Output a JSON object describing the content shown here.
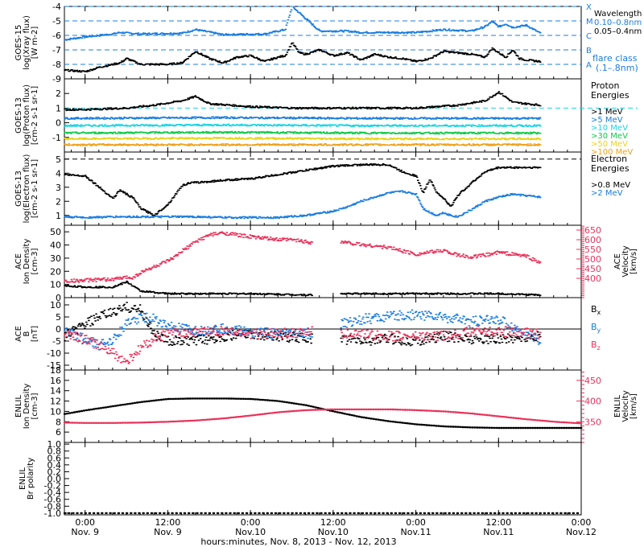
{
  "colors": {
    "black": "#000000",
    "blue": "#1a7de0",
    "pink": "#e8325a",
    "cyan": "#19d4e6",
    "green": "#12c94a",
    "ygreen": "#a8d81a",
    "yellow": "#e8d31a",
    "orange": "#f0a01a",
    "red": "#e8401a"
  },
  "footer": {
    "xlabel": "hours:minutes, Nov.  8, 2013 - Nov. 12, 2013",
    "ticks": [
      {
        "t": 0,
        "top": "0:00",
        "bottom": "Nov. 9"
      },
      {
        "t": 12,
        "top": "12:00",
        "bottom": "Nov. 9"
      },
      {
        "t": 24,
        "top": "0:00",
        "bottom": "Nov.10"
      },
      {
        "t": 36,
        "top": "12:00",
        "bottom": "Nov.10"
      },
      {
        "t": 48,
        "top": "0:00",
        "bottom": "Nov.11"
      },
      {
        "t": 60,
        "top": "12:00",
        "bottom": "Nov.11"
      },
      {
        "t": 72,
        "top": "0:00",
        "bottom": "Nov.12"
      }
    ]
  },
  "chart_data": [
    {
      "id": "goes-xray",
      "type": "line",
      "ylabel": [
        "GOES-15",
        "log(Xray flux)",
        "[W m-2]"
      ],
      "ylim": [
        -9,
        -4
      ],
      "yticks": [
        -9,
        -8,
        -7,
        -6,
        -5,
        -4
      ],
      "y_log10": true,
      "legend": [
        {
          "text": "Wavelength",
          "color": "black"
        },
        {
          "text": "0.10–0.8nm",
          "color": "blue"
        },
        {
          "text": "0.05–0.4nm",
          "color": "black"
        }
      ],
      "flare_class": {
        "levels": [
          {
            "label": "X",
            "y": -4
          },
          {
            "label": "M",
            "y": -5
          },
          {
            "label": "C",
            "y": -6
          },
          {
            "label": "B",
            "y": -7
          },
          {
            "label": "A",
            "y": -8
          }
        ],
        "label1": "flare class",
        "label2": "(.1–.8nm)"
      },
      "series": [
        {
          "name": "0.10–0.8nm",
          "color": "blue",
          "x": [
            -3,
            0,
            4,
            5,
            8,
            14,
            16,
            20,
            26,
            29,
            30,
            34,
            38,
            40,
            44,
            48,
            52,
            56,
            58,
            59,
            60,
            61,
            62,
            64,
            66
          ],
          "y": [
            -6.3,
            -6.1,
            -5.9,
            -5.8,
            -5.9,
            -5.85,
            -5.6,
            -5.95,
            -5.9,
            -5.6,
            -4.0,
            -5.7,
            -5.7,
            -5.8,
            -5.8,
            -5.8,
            -5.6,
            -5.7,
            -5.4,
            -5.05,
            -5.4,
            -5.2,
            -5.45,
            -5.3,
            -5.85
          ]
        },
        {
          "name": "0.05–0.4nm",
          "color": "black",
          "x": [
            -3,
            0,
            2,
            5,
            6,
            8,
            10,
            12,
            14,
            16,
            18,
            20,
            22,
            24,
            26,
            28,
            29,
            30,
            31,
            32,
            34,
            36,
            38,
            40,
            42,
            44,
            46,
            48,
            50,
            52,
            54,
            56,
            58,
            59,
            60,
            61,
            62,
            63,
            64,
            66
          ],
          "y": [
            -8.4,
            -8.5,
            -8.2,
            -7.9,
            -7.6,
            -8.0,
            -8.0,
            -8.0,
            -7.9,
            -7.1,
            -7.6,
            -7.9,
            -7.5,
            -7.4,
            -7.8,
            -7.5,
            -7.4,
            -6.5,
            -7.2,
            -7.3,
            -7.0,
            -7.4,
            -7.2,
            -7.7,
            -7.3,
            -7.5,
            -7.6,
            -7.8,
            -7.6,
            -7.1,
            -7.2,
            -7.3,
            -7.5,
            -6.9,
            -7.2,
            -7.5,
            -7.0,
            -7.6,
            -7.7,
            -7.8
          ]
        }
      ]
    },
    {
      "id": "goes-proton",
      "type": "line",
      "ylabel": [
        "GOES-13",
        "log(Proton flux)",
        "[cm-2 s-1 sr-1]"
      ],
      "ylim": [
        -2,
        3
      ],
      "yticks": [
        -1,
        0,
        1,
        2
      ],
      "y_log10": true,
      "legend_title": [
        "Proton",
        "Energies"
      ],
      "series": [
        {
          "name": ">1 MeV",
          "color": "black",
          "x": [
            -3,
            0,
            6,
            10,
            14,
            16,
            18,
            24,
            30,
            36,
            42,
            48,
            54,
            58,
            60,
            62,
            66
          ],
          "y": [
            0.9,
            0.9,
            1.0,
            1.2,
            1.5,
            1.8,
            1.3,
            1.1,
            1.0,
            1.0,
            1.0,
            1.0,
            1.2,
            1.5,
            2.1,
            1.4,
            1.2
          ]
        },
        {
          "name": ">5 MeV",
          "color": "blue",
          "x": [
            -3,
            20,
            40,
            66
          ],
          "y": [
            0.3,
            0.35,
            0.3,
            0.3
          ]
        },
        {
          "name": ">10 MeV",
          "color": "cyan",
          "x": [
            -3,
            20,
            40,
            66
          ],
          "y": [
            -0.2,
            -0.15,
            -0.2,
            -0.2
          ]
        },
        {
          "name": ">30 MeV",
          "color": "green",
          "x": [
            -3,
            20,
            40,
            66
          ],
          "y": [
            -0.7,
            -0.65,
            -0.7,
            -0.7
          ]
        },
        {
          "name": ">50 MeV",
          "color": "yellow",
          "x": [
            -3,
            20,
            40,
            66
          ],
          "y": [
            -1.1,
            -1.05,
            -1.1,
            -1.1
          ]
        },
        {
          "name": ">100 MeV",
          "color": "orange",
          "x": [
            -3,
            20,
            40,
            66
          ],
          "y": [
            -1.5,
            -1.5,
            -1.5,
            -1.5
          ]
        }
      ]
    },
    {
      "id": "goes-electron",
      "type": "line",
      "ylabel": [
        "GOES-13",
        "log(Electron flux)",
        "[cm-2 s-1 sr-1]"
      ],
      "ylim": [
        0.3,
        5.5
      ],
      "yticks": [
        1,
        2,
        3,
        4,
        5
      ],
      "y_log10": true,
      "legend_title": [
        "Electron",
        "Energies"
      ],
      "series": [
        {
          "name": ">0.8 MeV",
          "color": "black",
          "x": [
            -3,
            0,
            2,
            4,
            5,
            6,
            7,
            8,
            10,
            12,
            14,
            15,
            18,
            20,
            24,
            28,
            32,
            36,
            40,
            44,
            46,
            48,
            49,
            50,
            51,
            52,
            53,
            54,
            56,
            58,
            60,
            62,
            66
          ],
          "y": [
            3.9,
            3.8,
            3.0,
            2.2,
            2.8,
            2.5,
            2.2,
            1.5,
            1.0,
            1.8,
            3.1,
            3.3,
            3.4,
            3.5,
            3.6,
            3.9,
            4.2,
            4.5,
            4.6,
            4.6,
            4.1,
            3.8,
            2.6,
            3.6,
            2.6,
            2.2,
            1.6,
            2.4,
            3.3,
            4.1,
            4.4,
            4.4,
            4.4
          ]
        },
        {
          "name": ">2 MeV",
          "color": "blue",
          "x": [
            -3,
            0,
            4,
            8,
            12,
            16,
            20,
            24,
            28,
            32,
            36,
            38,
            40,
            44,
            46,
            48,
            49,
            50,
            51,
            52,
            53,
            54,
            56,
            58,
            60,
            62,
            66
          ],
          "y": [
            0.9,
            0.85,
            0.9,
            0.9,
            0.9,
            0.9,
            0.85,
            0.85,
            0.85,
            1.0,
            1.3,
            1.6,
            2.0,
            2.6,
            2.7,
            2.5,
            1.5,
            1.2,
            1.0,
            1.2,
            1.0,
            0.9,
            1.4,
            2.0,
            2.3,
            2.5,
            2.3
          ]
        }
      ]
    },
    {
      "id": "ace-density-velocity",
      "type": "scatter",
      "ylabel": [
        "ACE",
        "Ion Density",
        "[cm-3]"
      ],
      "ylim": [
        0,
        55
      ],
      "yticks": [
        0,
        10,
        20,
        30,
        40,
        50
      ],
      "y2label": [
        "ACE",
        "Velocity",
        "[km/s]"
      ],
      "y2lim": [
        300,
        675
      ],
      "y2ticks": [
        400,
        450,
        500,
        550,
        600,
        650
      ],
      "gap": [
        33,
        37
      ],
      "series": [
        {
          "name": "Ion Density",
          "color": "black",
          "axis": "left",
          "x": [
            -3,
            0,
            4,
            6,
            8,
            10,
            12,
            16,
            20,
            24,
            28,
            33,
            37,
            40,
            44,
            48,
            52,
            56,
            60,
            66
          ],
          "y": [
            9,
            8,
            8,
            12,
            5,
            4,
            3,
            3,
            3,
            3,
            2.5,
            2,
            3,
            3,
            3,
            3,
            3,
            3,
            3,
            2
          ]
        },
        {
          "name": "Velocity",
          "color": "pink",
          "axis": "right",
          "x": [
            -3,
            0,
            4,
            6,
            7,
            8,
            10,
            12,
            13,
            14,
            16,
            18,
            20,
            24,
            28,
            30,
            33,
            37,
            40,
            44,
            48,
            52,
            54,
            56,
            58,
            60,
            62,
            64,
            66
          ],
          "y": [
            385,
            390,
            395,
            405,
            405,
            430,
            460,
            490,
            510,
            540,
            590,
            625,
            635,
            615,
            600,
            600,
            585,
            590,
            575,
            560,
            525,
            545,
            520,
            510,
            520,
            535,
            525,
            515,
            480
          ]
        }
      ]
    },
    {
      "id": "ace-bfield",
      "type": "line",
      "ylabel": [
        "ACE",
        "B",
        "[nT]"
      ],
      "ylim": [
        -17,
        13
      ],
      "yticks": [
        -15,
        -10,
        -5,
        0,
        5,
        10
      ],
      "zero_line": true,
      "gap": [
        33,
        37
      ],
      "series": [
        {
          "name": "Bx",
          "color": "black",
          "x": [
            -3,
            0,
            2,
            4,
            6,
            8,
            10,
            12,
            16,
            20,
            24,
            28,
            33,
            37,
            40,
            44,
            48,
            52,
            56,
            60,
            66
          ],
          "y": [
            -3,
            2,
            5,
            7,
            9,
            8,
            -2,
            -5,
            -5,
            -3,
            -2,
            -3,
            -4,
            -4,
            -5,
            -4,
            -5,
            -3,
            -4,
            -4,
            -3
          ]
        },
        {
          "name": "By",
          "color": "blue",
          "x": [
            -3,
            0,
            2,
            4,
            6,
            8,
            10,
            12,
            16,
            20,
            24,
            28,
            33,
            37,
            40,
            44,
            48,
            52,
            56,
            60,
            66
          ],
          "y": [
            0,
            -5,
            -7,
            -4,
            2,
            5,
            4,
            1,
            -1,
            0,
            -1,
            -2,
            -2,
            2,
            4,
            5,
            6,
            5,
            3,
            4,
            -5
          ]
        },
        {
          "name": "Bz",
          "color": "pink",
          "x": [
            -3,
            0,
            2,
            4,
            6,
            8,
            10,
            12,
            16,
            20,
            24,
            28,
            33,
            37,
            40,
            44,
            48,
            52,
            56,
            60,
            66
          ],
          "y": [
            -2,
            -4,
            -7,
            -10,
            -14,
            -8,
            -4,
            -2,
            -1,
            -1,
            -2,
            -2,
            -1,
            -2,
            -2,
            -3,
            -3,
            -3,
            -1,
            -1,
            -2
          ]
        }
      ],
      "legend": [
        {
          "text": "Bx",
          "color": "black"
        },
        {
          "text": "By",
          "color": "blue"
        },
        {
          "text": "Bz",
          "color": "pink"
        }
      ]
    },
    {
      "id": "enlil-density-velocity",
      "type": "line",
      "ylabel": [
        "ENLIL",
        "Ion Density",
        "[cm-3]"
      ],
      "ylim": [
        4,
        18
      ],
      "yticks": [
        6,
        8,
        10,
        12,
        14,
        16,
        18
      ],
      "y2label": [
        "ENLIL",
        "Velocity",
        "[km/s]"
      ],
      "y2lim": [
        300,
        475
      ],
      "y2ticks": [
        350,
        400,
        450
      ],
      "series": [
        {
          "name": "Ion Density",
          "color": "black",
          "axis": "left",
          "x": [
            -3,
            0,
            4,
            8,
            12,
            16,
            20,
            24,
            28,
            32,
            36,
            40,
            44,
            48,
            52,
            56,
            60,
            64,
            68,
            72
          ],
          "y": [
            9.5,
            10.2,
            11.0,
            11.8,
            12.4,
            12.5,
            12.5,
            12.4,
            12.0,
            11.2,
            10.0,
            8.9,
            8.1,
            7.5,
            7.1,
            6.9,
            6.8,
            6.8,
            6.8,
            6.8
          ]
        },
        {
          "name": "Velocity",
          "color": "pink",
          "axis": "right",
          "x": [
            -3,
            0,
            4,
            8,
            12,
            16,
            20,
            24,
            28,
            32,
            36,
            40,
            44,
            48,
            52,
            56,
            60,
            64,
            68,
            72
          ],
          "y": [
            348,
            347,
            347,
            348,
            350,
            353,
            358,
            365,
            373,
            378,
            380,
            380,
            380,
            378,
            375,
            370,
            363,
            356,
            350,
            346
          ]
        }
      ]
    },
    {
      "id": "enlil-polarity",
      "type": "scatter",
      "ylabel": [
        "ENLIL",
        "Br polarity"
      ],
      "ylim": [
        -1.05,
        1.05
      ],
      "yticks": [
        -1.0,
        -0.8,
        -0.6,
        -0.4,
        -0.2,
        0.0,
        0.2,
        0.4,
        0.6,
        0.8,
        1.0
      ],
      "series": [
        {
          "name": "Br polarity",
          "color": "black",
          "x": [
            -3,
            72
          ],
          "y": [
            -1.0,
            -1.0
          ]
        }
      ]
    }
  ]
}
